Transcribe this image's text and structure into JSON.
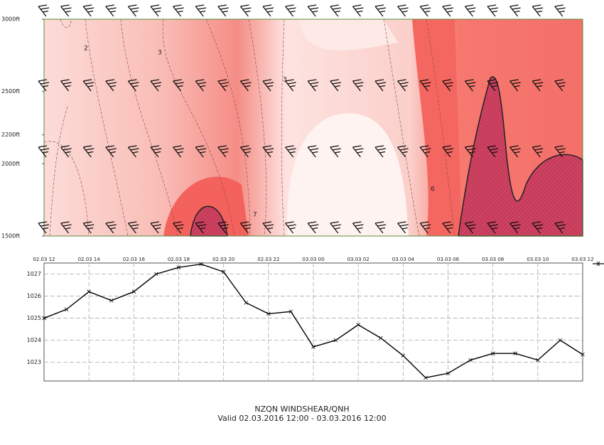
{
  "caption": {
    "title": "NZQN WINDSHEAR/QNH",
    "subtitle": "Valid 02.03.2016 12:00 - 03.03.2016 12:00"
  },
  "chart_data": [
    {
      "type": "contour",
      "ylim": [
        1500,
        3000
      ],
      "yticks": [
        {
          "value": 3000,
          "label": "3000ft"
        },
        {
          "value": 2500,
          "label": "2500ft"
        },
        {
          "value": 2200,
          "label": "2200ft"
        },
        {
          "value": 2000,
          "label": "2000ft"
        },
        {
          "value": 1500,
          "label": "1500ft"
        }
      ],
      "annotations": [
        "2",
        "3",
        "3",
        "6",
        "7"
      ]
    },
    {
      "type": "line",
      "categories": [
        "02.03 12",
        null,
        "02.03 14",
        null,
        "02.03 16",
        null,
        "02.03 18",
        null,
        "02.03 20",
        null,
        "02.03 22",
        null,
        "03.03 00",
        null,
        "03.03 02",
        null,
        "03.03 04",
        null,
        "03.03 06",
        null,
        "03.03 08",
        null,
        "03.03 10",
        null,
        "03.03 12"
      ],
      "series": [
        {
          "color": "#000000",
          "values": [
            1025.0,
            1025.4,
            1026.2,
            1025.8,
            1026.2,
            1027.0,
            1027.3,
            1027.45,
            1027.1,
            1025.7,
            1025.2,
            1025.3,
            1023.7,
            1024.0,
            1024.7,
            1024.1,
            1023.3,
            1022.3,
            1022.5,
            1023.1,
            1023.4,
            1023.4,
            1023.1,
            1024.0,
            1023.35
          ]
        }
      ],
      "ylim": [
        1022.15,
        1027.5
      ],
      "yticks": [
        1023,
        1024,
        1025,
        1026,
        1027
      ],
      "grid": true
    }
  ]
}
